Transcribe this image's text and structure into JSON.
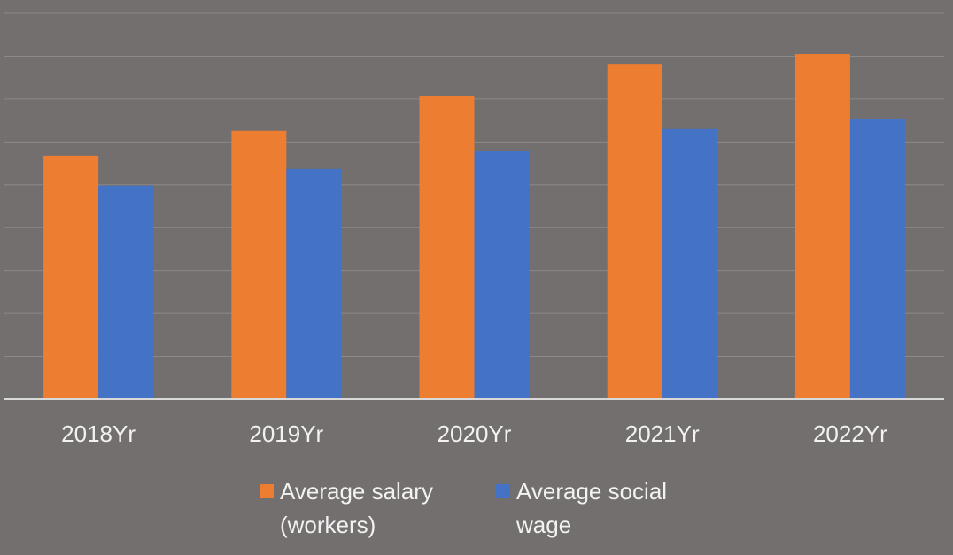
{
  "chart_data": {
    "type": "bar",
    "categories": [
      "2018Yr",
      "2019Yr",
      "2020Yr",
      "2021Yr",
      "2022Yr"
    ],
    "series": [
      {
        "name": "Average salary (workers)",
        "color": "#ed7d31",
        "values": [
          5.68,
          6.26,
          7.08,
          7.82,
          8.05
        ]
      },
      {
        "name": "Average social wage",
        "color": "#4472c4",
        "values": [
          4.98,
          5.37,
          5.78,
          6.3,
          6.54
        ]
      }
    ],
    "ylim": [
      0,
      9
    ],
    "yticks": [
      0,
      1,
      2,
      3,
      4,
      5,
      6,
      7,
      8,
      9
    ],
    "grid": true
  }
}
